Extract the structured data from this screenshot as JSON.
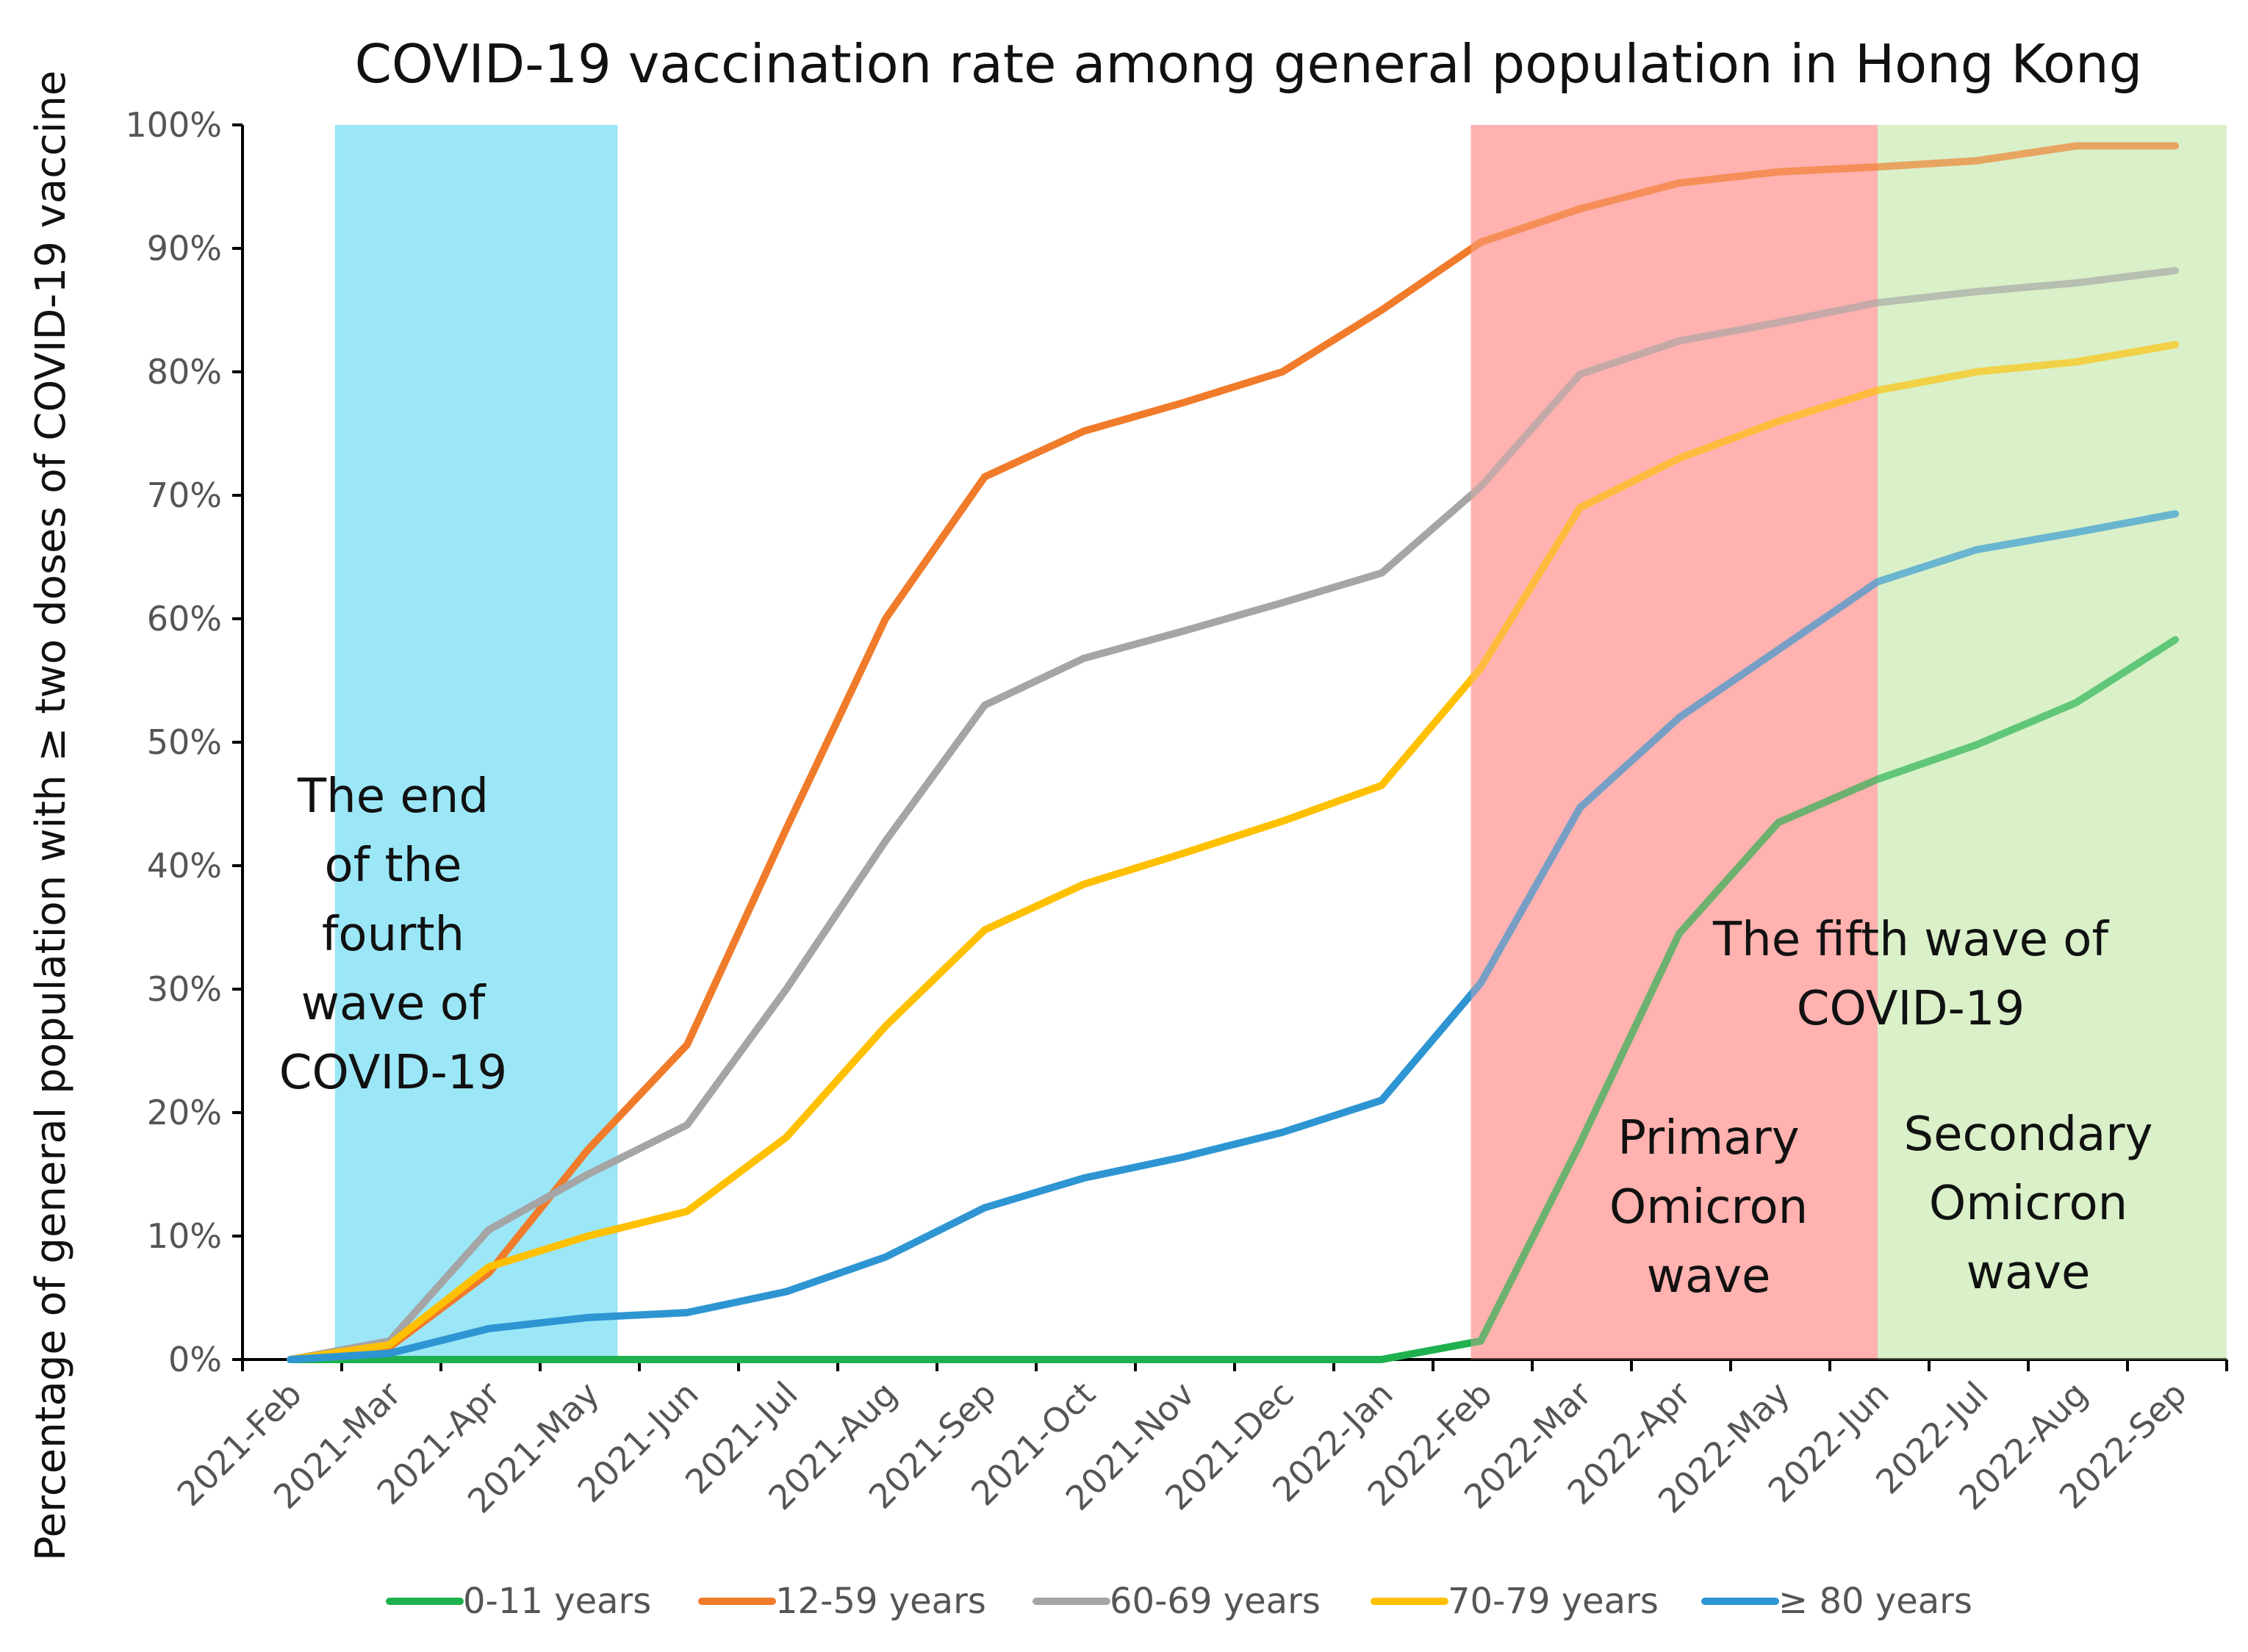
{
  "chart_data": {
    "type": "line",
    "title": "COVID-19 vaccination rate among general population in Hong Kong",
    "ylabel": "Percentage of general population with ≥ two doses of COVID-19 vaccine",
    "xlabel": "",
    "categories": [
      "2021-Feb",
      "2021-Mar",
      "2021-Apr",
      "2021-May",
      "2021-Jun",
      "2021-Jul",
      "2021-Aug",
      "2021-Sep",
      "2021-Oct",
      "2021-Nov",
      "2021-Dec",
      "2022-Jan",
      "2022-Feb",
      "2022-Mar",
      "2022-Apr",
      "2022-May",
      "2022-Jun",
      "2022-Jul",
      "2022-Aug",
      "2022-Sep"
    ],
    "ylim": [
      0,
      100
    ],
    "yticks": [
      "0%",
      "10%",
      "20%",
      "30%",
      "40%",
      "50%",
      "60%",
      "70%",
      "80%",
      "90%",
      "100%"
    ],
    "series": [
      {
        "name": "0-11 years",
        "color": "#1fb14e",
        "values": [
          0,
          0,
          0,
          0,
          0,
          0,
          0,
          0,
          0,
          0,
          0,
          0,
          1.5,
          17.5,
          34.5,
          43.5,
          47,
          49.8,
          53.2,
          58.3
        ]
      },
      {
        "name": "12-59 years",
        "color": "#f07b2a",
        "values": [
          0,
          1.0,
          7.0,
          17.0,
          25.5,
          43.0,
          60.0,
          71.5,
          75.2,
          77.5,
          80.0,
          85.0,
          90.5,
          93.2,
          95.3,
          96.2,
          96.6,
          97.1,
          98.3,
          98.3
        ]
      },
      {
        "name": "60-69 years",
        "color": "#a5a5a5",
        "values": [
          0,
          1.5,
          10.5,
          15.0,
          19.0,
          30.0,
          42.0,
          53.0,
          56.8,
          59.0,
          61.3,
          63.7,
          70.7,
          79.8,
          82.5,
          84.0,
          85.6,
          86.5,
          87.2,
          88.2
        ]
      },
      {
        "name": "70-79 years",
        "color": "#ffc000",
        "values": [
          0,
          1.2,
          7.5,
          10.0,
          12.0,
          18.0,
          27.0,
          34.8,
          38.5,
          41.0,
          43.6,
          46.5,
          56.0,
          69.0,
          73.0,
          76.0,
          78.5,
          80.0,
          80.8,
          82.2
        ]
      },
      {
        "name": "≥ 80 years",
        "color": "#2e95d3",
        "values": [
          0,
          0.5,
          2.5,
          3.4,
          3.8,
          5.5,
          8.3,
          12.3,
          14.7,
          16.4,
          18.4,
          21.0,
          30.5,
          44.7,
          52.0,
          57.5,
          63.0,
          65.6,
          67.0,
          68.5
        ]
      }
    ],
    "regions": [
      {
        "label_lines": [
          "The end",
          "of the",
          "fourth",
          "wave of",
          "COVID-19"
        ],
        "color": "#9be7f8",
        "x_start": 0.45,
        "x_end": 3.3
      },
      {
        "label_lines": [
          "Primary",
          "Omicron",
          "wave"
        ],
        "color": "#ffb3b0",
        "x_start": 11.9,
        "x_end": 16.0
      },
      {
        "label_lines": [
          "Secondary",
          "Omicron",
          "wave"
        ],
        "color": "#d9f0c8",
        "x_start": 16.0,
        "x_end": 20.0
      }
    ],
    "annotations": [
      {
        "label_lines": [
          "The fifth wave of",
          "COVID-19"
        ]
      }
    ],
    "legend": {
      "position": "bottom"
    }
  }
}
